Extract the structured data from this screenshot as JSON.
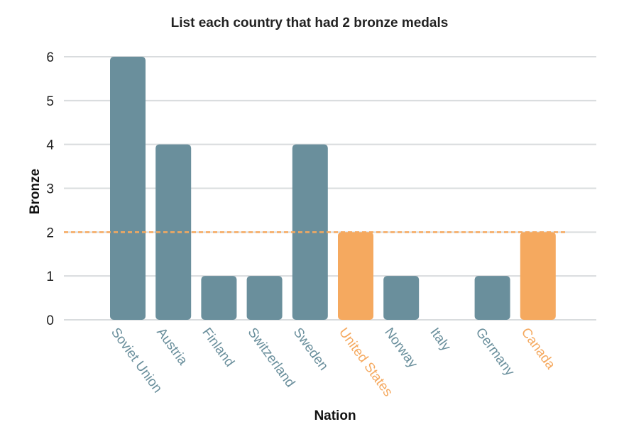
{
  "chart_data": {
    "type": "bar",
    "title": "List each country that had 2 bronze medals",
    "xlabel": "Nation",
    "ylabel": "Bronze",
    "categories": [
      "Soviet Union",
      "Austria",
      "Finland",
      "Switzerland",
      "Sweden",
      "United States",
      "Norway",
      "Italy",
      "Germany",
      "Canada"
    ],
    "values": [
      6,
      4,
      1,
      1,
      4,
      2,
      1,
      0,
      1,
      2
    ],
    "highlighted": [
      false,
      false,
      false,
      false,
      false,
      true,
      false,
      false,
      false,
      true
    ],
    "ylim": [
      0,
      6
    ],
    "yticks": [
      0,
      1,
      2,
      3,
      4,
      5,
      6
    ],
    "reference_line": {
      "value": 2,
      "style": "dashed"
    },
    "grid": "horizontal",
    "colors": {
      "bar": "#6a8f9c",
      "highlight": "#f5a95f",
      "grid": "#d9dcde",
      "text": "#222222"
    }
  }
}
